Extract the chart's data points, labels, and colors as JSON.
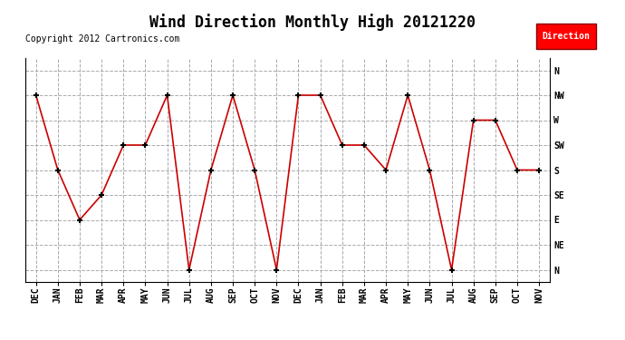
{
  "title": "Wind Direction Monthly High 20121220",
  "copyright": "Copyright 2012 Cartronics.com",
  "legend_label": "Direction",
  "legend_color": "#FF0000",
  "legend_text_color": "#FFFFFF",
  "x_labels": [
    "DEC",
    "JAN",
    "FEB",
    "MAR",
    "APR",
    "MAY",
    "JUN",
    "JUL",
    "AUG",
    "SEP",
    "OCT",
    "NOV",
    "DEC",
    "JAN",
    "FEB",
    "MAR",
    "APR",
    "MAY",
    "JUN",
    "JUL",
    "AUG",
    "SEP",
    "OCT",
    "NOV"
  ],
  "y_labels_top_to_bottom": [
    "N",
    "NW",
    "W",
    "SW",
    "S",
    "SE",
    "E",
    "NE",
    "N"
  ],
  "data_values": [
    7,
    4,
    2,
    3,
    5,
    5,
    7,
    0,
    4,
    7,
    4,
    0,
    7,
    7,
    5,
    5,
    4,
    7,
    4,
    0,
    6,
    6,
    4,
    4
  ],
  "line_color": "#CC0000",
  "marker": "+",
  "marker_color": "#000000",
  "marker_size": 5,
  "line_width": 1.2,
  "bg_color": "#FFFFFF",
  "grid_color": "#AAAAAA",
  "grid_style": "--",
  "title_fontsize": 12,
  "copyright_fontsize": 7,
  "axis_fontsize": 7,
  "figsize": [
    6.9,
    3.75
  ],
  "dpi": 100
}
